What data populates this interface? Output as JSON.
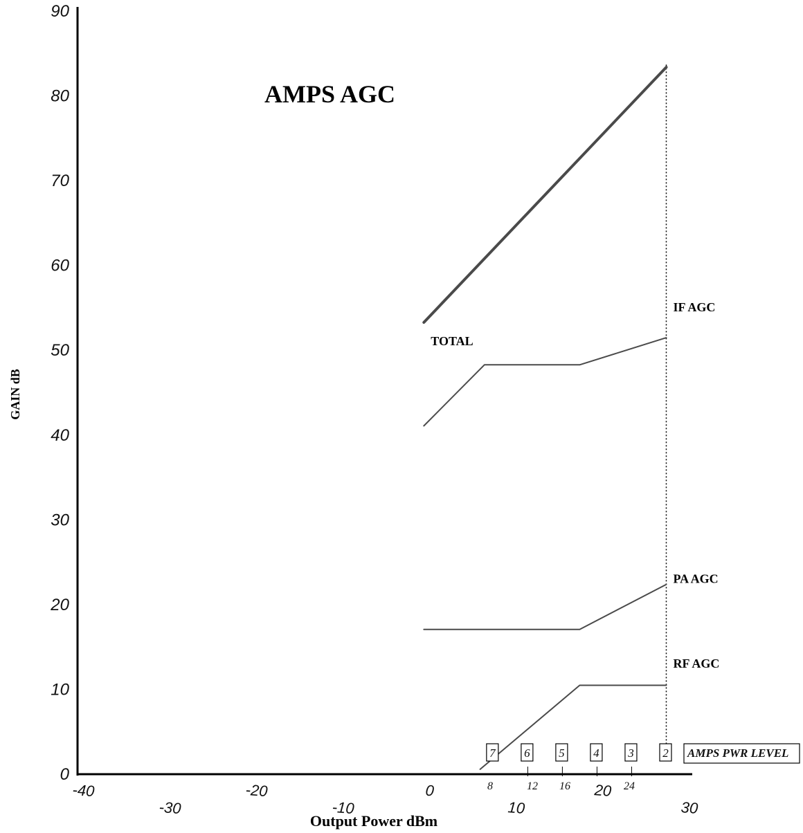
{
  "chart_data": {
    "type": "line",
    "title": "AMPS AGC",
    "xlabel": "Output Power dBm",
    "ylabel": "GAIN dB",
    "xlim": [
      -40,
      31
    ],
    "ylim": [
      0,
      90
    ],
    "y_ticks": [
      "0",
      "10",
      "20",
      "30",
      "40",
      "50",
      "60",
      "70",
      "80",
      "90"
    ],
    "x_ticks": [
      {
        "label": "-40",
        "value": -40
      },
      {
        "label": "-30",
        "value": -30
      },
      {
        "label": "-20",
        "value": -20
      },
      {
        "label": "-10",
        "value": -10
      },
      {
        "label": "0",
        "value": 0
      },
      {
        "label": "10",
        "value": 10
      },
      {
        "label": "20",
        "value": 20
      },
      {
        "label": "30",
        "value": 30
      }
    ],
    "series": [
      {
        "name": "TOTAL",
        "x": [
          0,
          28
        ],
        "y": [
          53.2,
          83.3
        ],
        "color": "#4a4a4a",
        "width": 4
      },
      {
        "name": "IF AGC",
        "x": [
          0,
          7,
          18,
          28
        ],
        "y": [
          41,
          48.2,
          48.2,
          51.4
        ],
        "color": "#4a4a4a",
        "width": 2
      },
      {
        "name": "PA AGC",
        "x": [
          0,
          18,
          28
        ],
        "y": [
          17,
          17,
          22.3
        ],
        "color": "#4a4a4a",
        "width": 2
      },
      {
        "name": "RF AGC",
        "x": [
          6.5,
          18,
          28
        ],
        "y": [
          0.5,
          10.4,
          10.4
        ],
        "color": "#4a4a4a",
        "width": 2
      }
    ],
    "series_labels": [
      {
        "text": "TOTAL",
        "x": 0.8,
        "y": 50.5
      },
      {
        "text": "IF AGC",
        "x": 28.8,
        "y": 54.5
      },
      {
        "text": "PA AGC",
        "x": 28.8,
        "y": 22.5
      },
      {
        "text": "RF AGC",
        "x": 28.8,
        "y": 12.5
      }
    ],
    "max_power_line": {
      "x": 28,
      "style": "dotted"
    },
    "power_levels": {
      "label": "AMPS PWR LEVEL",
      "levels": [
        {
          "level": "7",
          "x": 8
        },
        {
          "level": "6",
          "x": 12
        },
        {
          "level": "5",
          "x": 16
        },
        {
          "level": "4",
          "x": 20
        },
        {
          "level": "3",
          "x": 24
        },
        {
          "level": "2",
          "x": 28
        }
      ]
    },
    "sub_ticks": [
      "8",
      "12",
      "16",
      "24"
    ],
    "grid": false
  }
}
